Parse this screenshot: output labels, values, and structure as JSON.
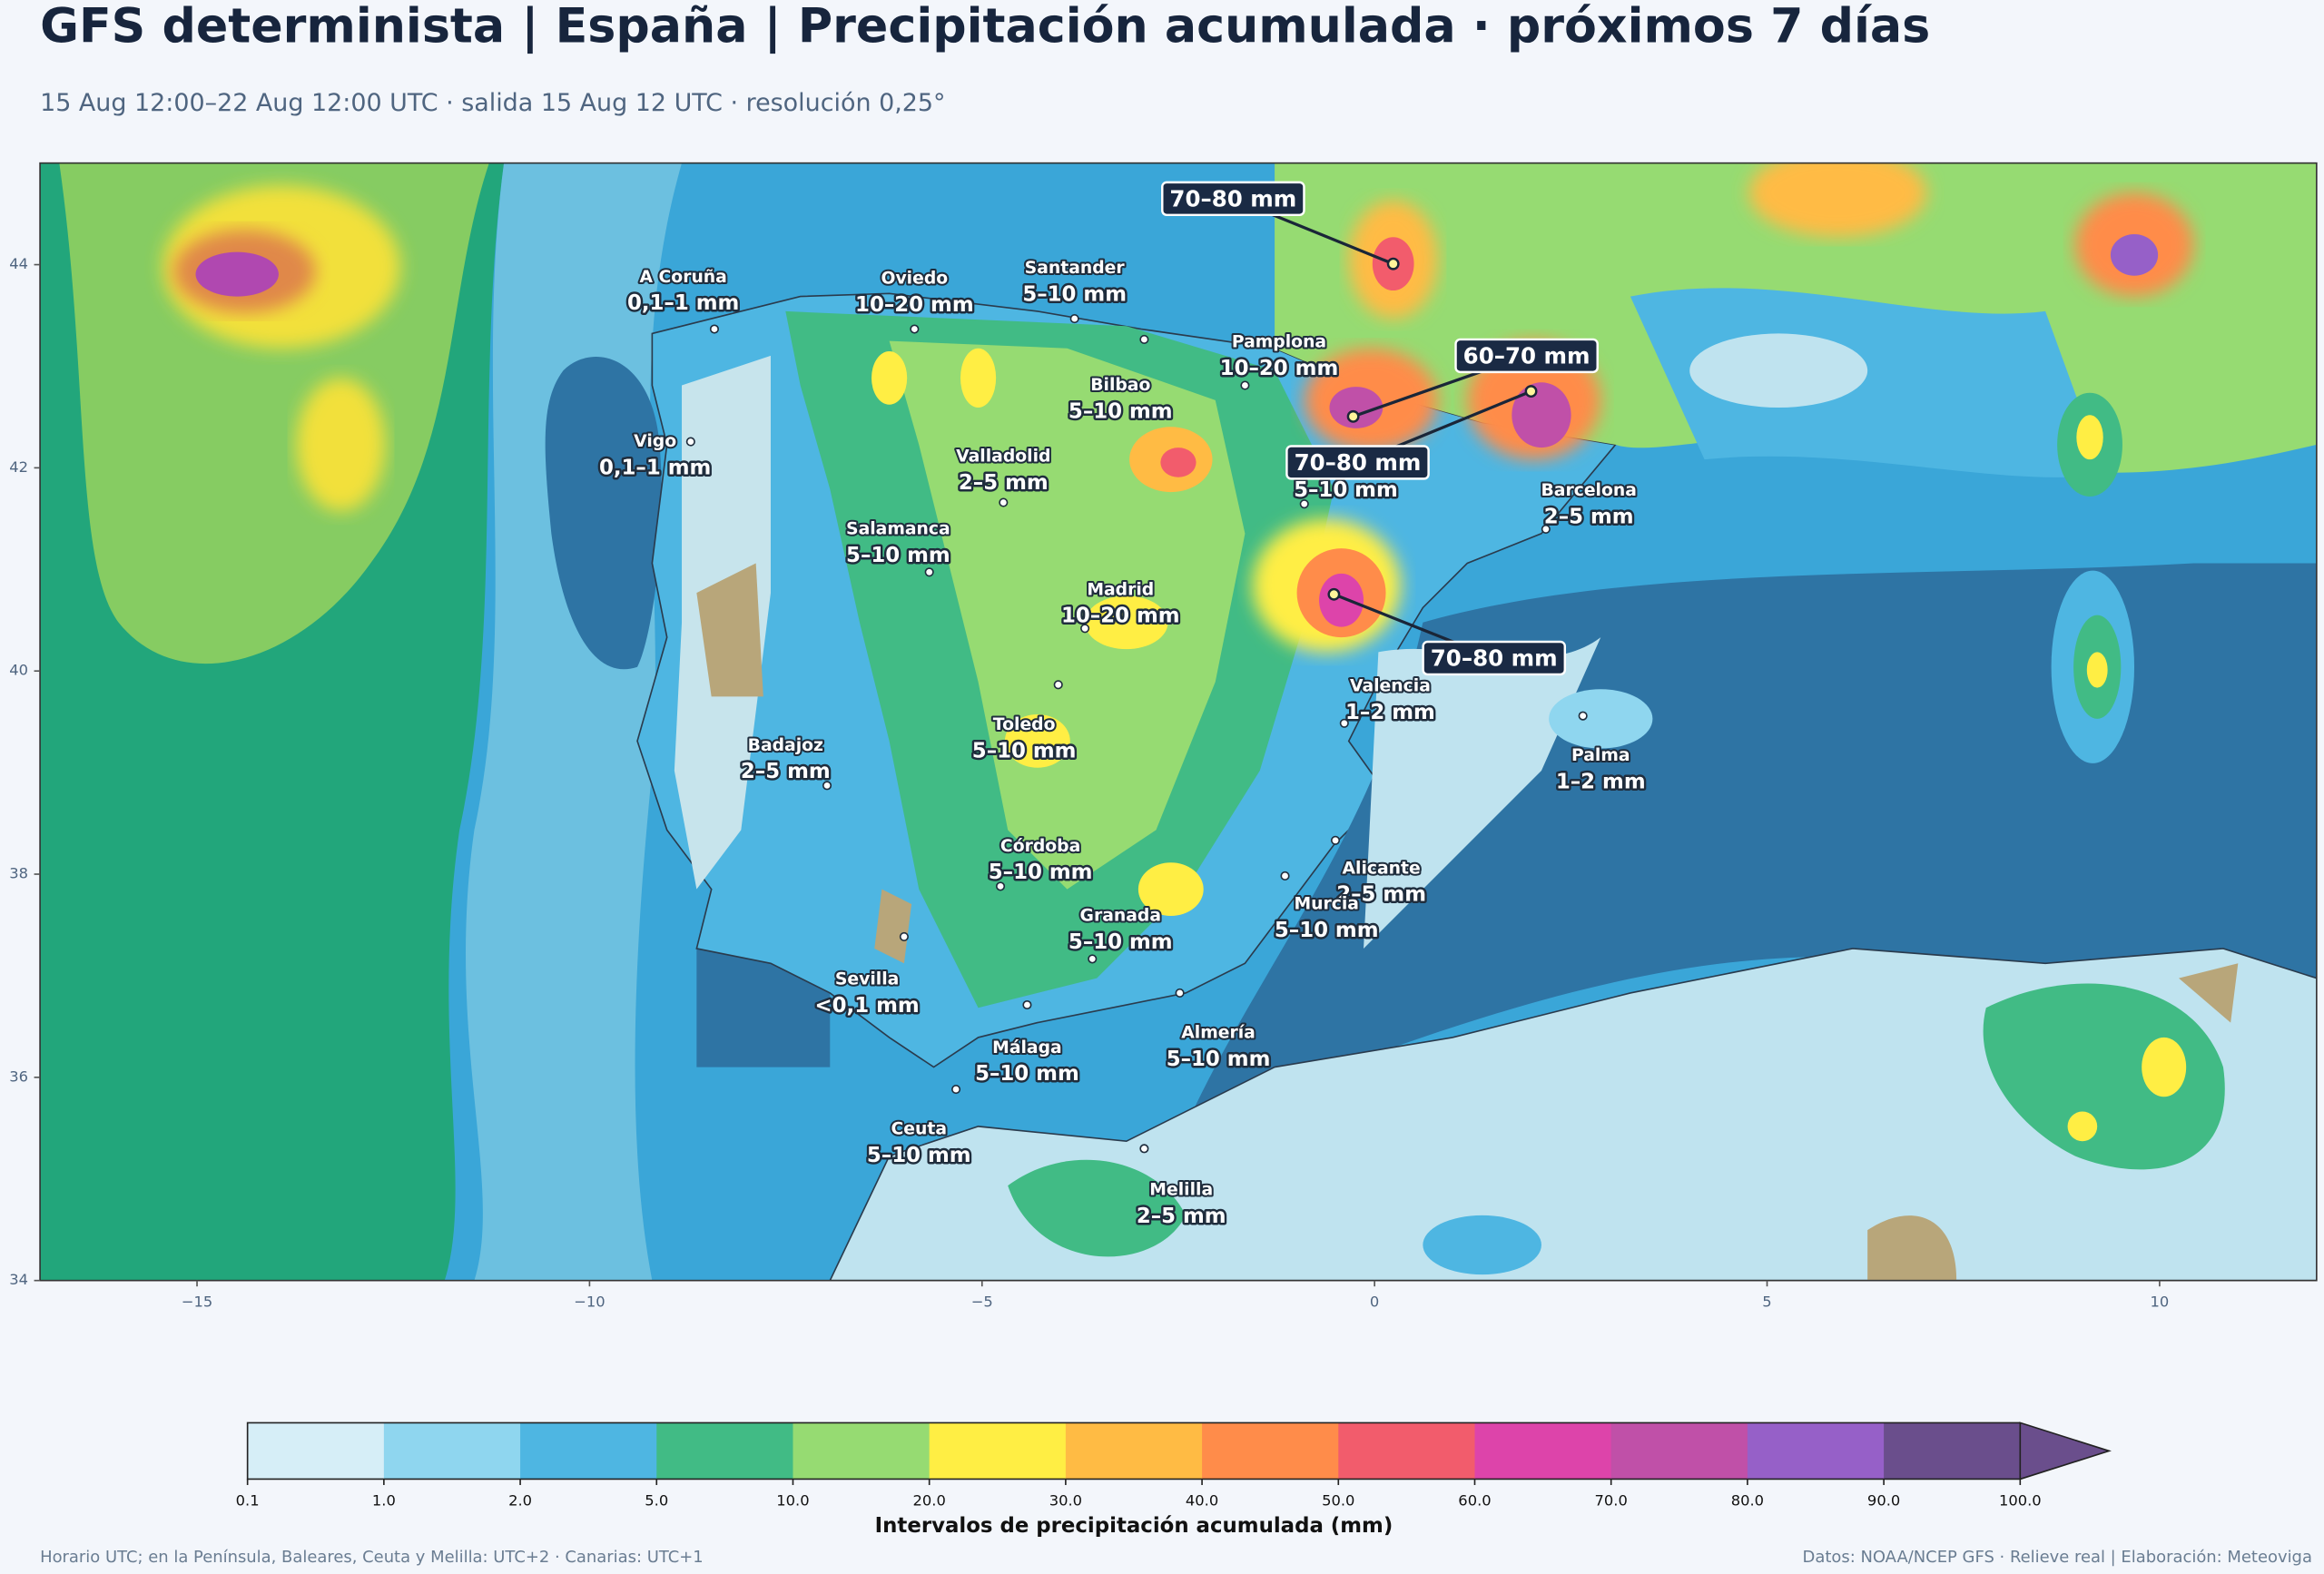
{
  "header": {
    "title": "GFS determinista | España | Precipitación acumulada · próximos 7 días",
    "subtitle": "15 Aug 12:00–22 Aug 12:00 UTC · salida 15 Aug 12 UTC · resolución 0,25°"
  },
  "map": {
    "xlim": [
      -17,
      12
    ],
    "ylim": [
      34,
      45
    ],
    "xticks": [
      {
        "value": -15,
        "label": "−15"
      },
      {
        "value": -10,
        "label": "−10"
      },
      {
        "value": -5,
        "label": "−5"
      },
      0,
      5,
      10
    ],
    "yticks": [
      34,
      36,
      38,
      40,
      42,
      44
    ],
    "cities": [
      {
        "name": "A Coruña",
        "label": "0,1–1 mm"
      },
      {
        "name": "Oviedo",
        "label": "10–20 mm"
      },
      {
        "name": "Santander",
        "label": "5–10 mm"
      },
      {
        "name": "Bilbao",
        "label": "5–10 mm"
      },
      {
        "name": "Pamplona",
        "label": "10–20 mm"
      },
      {
        "name": "Vigo",
        "label": "0,1–1 mm"
      },
      {
        "name": "Valladolid",
        "label": "2–5 mm"
      },
      {
        "name": "Salamanca",
        "label": "5–10 mm"
      },
      {
        "name": "Madrid",
        "label": "10–20 mm"
      },
      {
        "name": "Barcelona",
        "label": "2–5 mm"
      },
      {
        "name": null,
        "label": "5–10 mm"
      },
      {
        "name": "Valencia",
        "label": "1–2 mm"
      },
      {
        "name": "Palma",
        "label": "1–2 mm"
      },
      {
        "name": "Badajoz",
        "label": "2–5 mm"
      },
      {
        "name": "Toledo",
        "label": "5–10 mm"
      },
      {
        "name": "Córdoba",
        "label": "5–10 mm"
      },
      {
        "name": "Alicante",
        "label": "2–5 mm"
      },
      {
        "name": "Murcia",
        "label": "5–10 mm"
      },
      {
        "name": "Granada",
        "label": "5–10 mm"
      },
      {
        "name": "Sevilla",
        "label": "<0,1 mm"
      },
      {
        "name": "Almería",
        "label": "5–10 mm"
      },
      {
        "name": "Málaga",
        "label": "5–10 mm"
      },
      {
        "name": "Ceuta",
        "label": "5–10 mm"
      },
      {
        "name": "Melilla",
        "label": "2–5 mm"
      }
    ],
    "callouts": [
      {
        "label": "70–80 mm"
      },
      {
        "label": "60–70 mm"
      },
      {
        "label": "70–80 mm"
      },
      {
        "label": "70–80 mm"
      }
    ]
  },
  "colorbar": {
    "label": "Intervalos de precipitación acumulada (mm)",
    "boundaries": [
      0.1,
      {
        "value": 1,
        "label": "1.0"
      },
      {
        "value": 2,
        "label": "2.0"
      },
      {
        "value": 5,
        "label": "5.0"
      },
      {
        "value": 10,
        "label": "10.0"
      },
      {
        "value": 20,
        "label": "20.0"
      },
      {
        "value": 30,
        "label": "30.0"
      },
      {
        "value": 40,
        "label": "40.0"
      },
      {
        "value": 50,
        "label": "50.0"
      },
      {
        "value": 60,
        "label": "60.0"
      },
      {
        "value": 70,
        "label": "70.0"
      },
      {
        "value": 80,
        "label": "80.0"
      },
      {
        "value": 90,
        "label": "90.0"
      },
      {
        "value": 100,
        "label": "100.0"
      }
    ],
    "colors": [
      "#d6eef7",
      "#8fd6ef",
      "#4eb6e2",
      "#41bb85",
      "#96db72",
      "#ffee44",
      "#ffbb44",
      "#ff8c4a",
      "#f25c6c",
      "#dd44aa",
      "#c050a8",
      "#9660c8",
      "#6a4e8c"
    ],
    "extend_color": "#6a4e8c"
  },
  "footer": {
    "left": "Horario UTC; en la Península, Baleares, Ceuta y Melilla: UTC+2 · Canarias: UTC+1",
    "right": "Datos: NOAA/NCEP GFS · Relieve real | Elaboración: Meteoviga"
  }
}
